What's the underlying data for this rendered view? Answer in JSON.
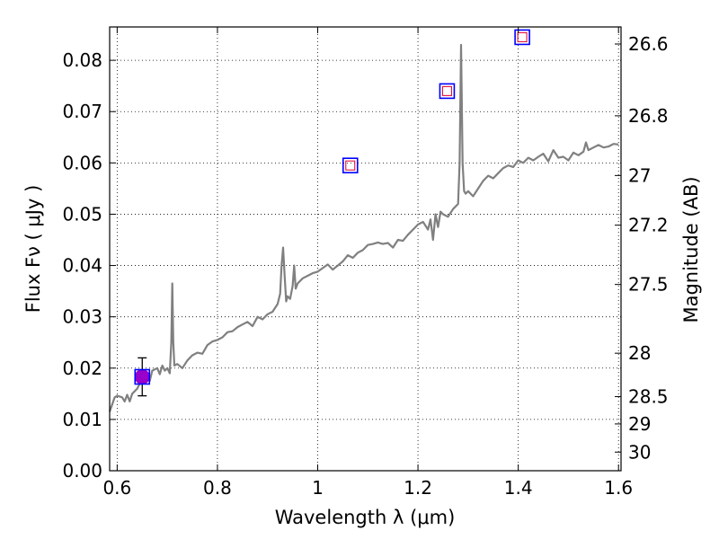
{
  "chart_data": {
    "type": "line",
    "xlabel": "Wavelength  λ (μm)",
    "ylabel": "Flux  Fν  ( μJy )",
    "y2label": "Magnitude (AB)",
    "xlim": [
      0.585,
      1.605
    ],
    "ylim": [
      0.0,
      0.0865
    ],
    "grid": true,
    "x_ticks": [
      0.6,
      0.8,
      1.0,
      1.2,
      1.4,
      1.6
    ],
    "x_tick_labels": [
      "0.6",
      "0.8",
      "1",
      "1.2",
      "1.4",
      "1.6"
    ],
    "y_ticks": [
      0.0,
      0.01,
      0.02,
      0.03,
      0.04,
      0.05,
      0.06,
      0.07,
      0.08
    ],
    "y_tick_labels": [
      "0.00",
      "0.01",
      "0.02",
      "0.03",
      "0.04",
      "0.05",
      "0.06",
      "0.07",
      "0.08"
    ],
    "y2_ticks": [
      26.6,
      26.8,
      27.0,
      27.2,
      27.5,
      28.0,
      28.5,
      29.0,
      30.0
    ],
    "y2_tick_labels": [
      "26.6",
      "26.8",
      "27",
      "27.2",
      "27.5",
      "28",
      "28.5",
      "29",
      "30"
    ],
    "series": [
      {
        "kind": "spectrum",
        "color": "#808080",
        "x": [
          0.585,
          0.595,
          0.6,
          0.61,
          0.615,
          0.62,
          0.625,
          0.63,
          0.64,
          0.645,
          0.65,
          0.66,
          0.665,
          0.67,
          0.68,
          0.685,
          0.69,
          0.695,
          0.7,
          0.705,
          0.708,
          0.71,
          0.712,
          0.714,
          0.72,
          0.73,
          0.74,
          0.75,
          0.76,
          0.77,
          0.78,
          0.79,
          0.8,
          0.81,
          0.82,
          0.83,
          0.84,
          0.85,
          0.86,
          0.87,
          0.88,
          0.89,
          0.9,
          0.91,
          0.92,
          0.925,
          0.928,
          0.931,
          0.934,
          0.937,
          0.94,
          0.945,
          0.95,
          0.953,
          0.956,
          0.96,
          0.97,
          0.98,
          0.99,
          1.0,
          1.01,
          1.02,
          1.03,
          1.04,
          1.05,
          1.06,
          1.07,
          1.08,
          1.09,
          1.1,
          1.11,
          1.12,
          1.13,
          1.14,
          1.15,
          1.16,
          1.17,
          1.18,
          1.19,
          1.2,
          1.21,
          1.22,
          1.225,
          1.23,
          1.235,
          1.24,
          1.245,
          1.25,
          1.26,
          1.27,
          1.28,
          1.283,
          1.286,
          1.289,
          1.292,
          1.295,
          1.3,
          1.31,
          1.32,
          1.33,
          1.34,
          1.35,
          1.36,
          1.37,
          1.38,
          1.39,
          1.4,
          1.41,
          1.42,
          1.43,
          1.44,
          1.45,
          1.46,
          1.47,
          1.48,
          1.49,
          1.5,
          1.51,
          1.52,
          1.53,
          1.535,
          1.54,
          1.55,
          1.56,
          1.57,
          1.58,
          1.59,
          1.6
        ],
        "y": [
          0.0115,
          0.0143,
          0.0146,
          0.0143,
          0.0135,
          0.0148,
          0.0135,
          0.015,
          0.016,
          0.017,
          0.0185,
          0.0185,
          0.0175,
          0.0195,
          0.02,
          0.0188,
          0.0205,
          0.0195,
          0.02,
          0.019,
          0.025,
          0.0365,
          0.025,
          0.0205,
          0.0208,
          0.02,
          0.0215,
          0.0225,
          0.023,
          0.0228,
          0.0245,
          0.0252,
          0.0255,
          0.026,
          0.027,
          0.0272,
          0.028,
          0.0285,
          0.029,
          0.0282,
          0.03,
          0.0295,
          0.0305,
          0.031,
          0.0325,
          0.0345,
          0.04,
          0.0435,
          0.038,
          0.033,
          0.034,
          0.0335,
          0.036,
          0.04,
          0.0355,
          0.0365,
          0.0375,
          0.038,
          0.0385,
          0.0388,
          0.0395,
          0.0402,
          0.0392,
          0.04,
          0.0408,
          0.042,
          0.0415,
          0.0425,
          0.043,
          0.044,
          0.0442,
          0.0445,
          0.0442,
          0.0444,
          0.0435,
          0.045,
          0.0448,
          0.046,
          0.047,
          0.048,
          0.0485,
          0.047,
          0.049,
          0.045,
          0.05,
          0.0475,
          0.0505,
          0.05,
          0.0495,
          0.051,
          0.052,
          0.06,
          0.083,
          0.06,
          0.0545,
          0.054,
          0.0545,
          0.0535,
          0.055,
          0.0565,
          0.0575,
          0.057,
          0.058,
          0.059,
          0.0595,
          0.0592,
          0.0605,
          0.06,
          0.061,
          0.0605,
          0.0612,
          0.0618,
          0.0603,
          0.0625,
          0.061,
          0.0612,
          0.0605,
          0.062,
          0.0615,
          0.0622,
          0.064,
          0.0625,
          0.063,
          0.0635,
          0.063,
          0.0632,
          0.0637,
          0.0636
        ]
      },
      {
        "kind": "observed",
        "color": "#9900cc",
        "x": [
          0.65
        ],
        "y": [
          0.0183
        ],
        "yerr": [
          0.0037
        ]
      },
      {
        "kind": "model-boxes",
        "color": "#0000ff",
        "x": [
          0.65,
          1.065,
          1.258,
          1.408
        ],
        "y": [
          0.0183,
          0.0595,
          0.074,
          0.0845
        ]
      },
      {
        "kind": "model-inner-boxes",
        "color": "#e0103a",
        "x": [
          1.065,
          1.258,
          1.408
        ],
        "y": [
          0.0595,
          0.074,
          0.0845
        ]
      }
    ]
  },
  "colors": {
    "spectrum": "#808080",
    "point": "#9900cc",
    "outer_box": "#0000ff",
    "inner_box": "#e0103a",
    "grid": "#000000"
  }
}
